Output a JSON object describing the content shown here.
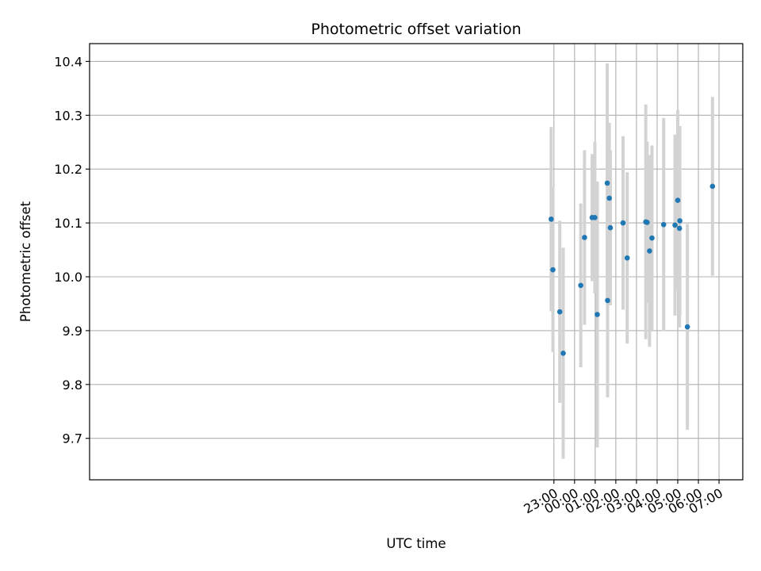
{
  "chart_data": {
    "type": "scatter",
    "title": "Photometric offset variation",
    "xlabel": "UTC time",
    "ylabel": "Photometric offset",
    "x_unit": "hours after 23:00 UTC (negative = before)",
    "xlim": [
      -23.5,
      8.15
    ],
    "ylim": [
      9.623,
      10.433
    ],
    "x_ticks": [
      {
        "value": 23,
        "label": "23:00"
      },
      {
        "value": 0,
        "label": "00:00"
      },
      {
        "value": 1,
        "label": "01:00"
      },
      {
        "value": 2,
        "label": "02:00"
      },
      {
        "value": 3,
        "label": "03:00"
      },
      {
        "value": 4,
        "label": "04:00"
      },
      {
        "value": 5,
        "label": "05:00"
      },
      {
        "value": 6,
        "label": "06:00"
      },
      {
        "value": 7,
        "label": "07:00"
      }
    ],
    "y_ticks": [
      "9.7",
      "9.8",
      "9.9",
      "10.0",
      "10.1",
      "10.2",
      "10.3",
      "10.4"
    ],
    "grid": true,
    "marker_color": "#1f77b4",
    "errorbar_color": "#d3d3d3",
    "series": [
      {
        "name": "",
        "points": [
          {
            "x": "22:52",
            "y": 10.107,
            "err": 0.171
          },
          {
            "x": "22:57",
            "y": 10.013,
            "err": 0.153
          },
          {
            "x": "23:17",
            "y": 9.935,
            "err": 0.169
          },
          {
            "x": "23:27",
            "y": 9.858,
            "err": 0.196
          },
          {
            "x": "00:18",
            "y": 9.984,
            "err": 0.152
          },
          {
            "x": "00:29",
            "y": 10.073,
            "err": 0.162
          },
          {
            "x": "00:51",
            "y": 10.11,
            "err": 0.118
          },
          {
            "x": "00:59",
            "y": 10.11,
            "err": 0.141
          },
          {
            "x": "01:06",
            "y": 9.93,
            "err": 0.247
          },
          {
            "x": "01:35",
            "y": 10.174,
            "err": 0.222
          },
          {
            "x": "01:36",
            "y": 9.956,
            "err": 0.18
          },
          {
            "x": "01:41",
            "y": 10.146,
            "err": 0.14
          },
          {
            "x": "01:44",
            "y": 10.091,
            "err": 0.144
          },
          {
            "x": "02:21",
            "y": 10.1,
            "err": 0.161
          },
          {
            "x": "02:33",
            "y": 10.035,
            "err": 0.159
          },
          {
            "x": "03:27",
            "y": 10.102,
            "err": 0.218
          },
          {
            "x": "03:31",
            "y": 10.101,
            "err": 0.15
          },
          {
            "x": "03:38",
            "y": 10.048,
            "err": 0.178
          },
          {
            "x": "03:45",
            "y": 10.072,
            "err": 0.172
          },
          {
            "x": "04:19",
            "y": 10.097,
            "err": 0.198
          },
          {
            "x": "04:52",
            "y": 10.096,
            "err": 0.168
          },
          {
            "x": "05:00",
            "y": 10.142,
            "err": 0.168
          },
          {
            "x": "05:05",
            "y": 10.09,
            "err": 0.184
          },
          {
            "x": "05:06",
            "y": 10.104,
            "err": 0.176
          },
          {
            "x": "05:28",
            "y": 9.907,
            "err": 0.191
          },
          {
            "x": "06:41",
            "y": 10.168,
            "err": 0.166
          }
        ]
      }
    ]
  }
}
